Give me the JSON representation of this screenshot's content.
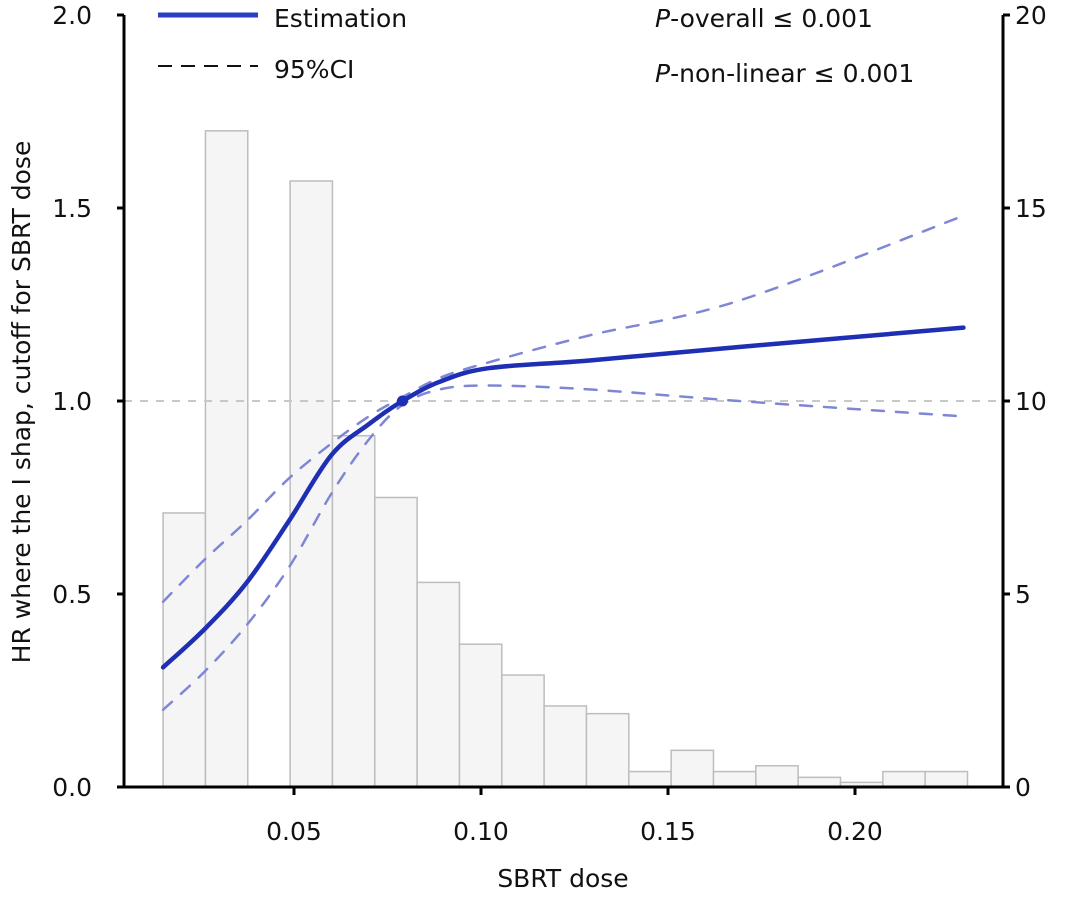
{
  "chart_data": {
    "type": "line",
    "title": "",
    "xlabel": "SBRT dose",
    "ylabel": "HR where the I shap, cutoff for SBRT dose",
    "y2label": "",
    "xlim": [
      0.0,
      0.24
    ],
    "ylim": [
      0.0,
      2.0
    ],
    "y2lim": [
      0,
      20
    ],
    "x_ticks": [
      0.05,
      0.1,
      0.15,
      0.2
    ],
    "x_tick_labels": [
      "0.05",
      "0.10",
      "0.15",
      "0.20"
    ],
    "y_ticks": [
      0.0,
      0.5,
      1.0,
      1.5,
      2.0
    ],
    "y_tick_labels": [
      "0.0",
      "0.5",
      "1.0",
      "1.5",
      "2.0"
    ],
    "y2_ticks": [
      0,
      5,
      10,
      15,
      20
    ],
    "y2_tick_labels": [
      "0",
      "5",
      "10",
      "15",
      "20"
    ],
    "reference_line": {
      "y": 1.0,
      "style": "dashed",
      "color": "#c8c8c8"
    },
    "legend": {
      "position": "top-left",
      "entries": [
        {
          "label": "Estimation",
          "style": "solid",
          "color": "#2233bb"
        },
        {
          "label": "95%CI",
          "style": "dashed",
          "color": "#111111"
        }
      ]
    },
    "annotations": [
      {
        "prefix": "P",
        "text": "-overall ≤ 0.001",
        "position": "top-right"
      },
      {
        "prefix": "P",
        "text": "-non-linear ≤ 0.001",
        "position": "top-right"
      }
    ],
    "knot": {
      "x": 0.079,
      "y": 1.0
    },
    "histogram": {
      "axis": "right",
      "bin_start": 0.015,
      "bin_width": 0.01132,
      "counts": [
        7.1,
        17.0,
        0,
        15.7,
        9.1,
        7.5,
        5.3,
        3.7,
        2.9,
        2.1,
        1.9,
        0.4,
        0.95,
        0.4,
        0.55,
        0.25,
        0.12,
        0.4,
        0.4
      ],
      "fill": "#f5f5f5",
      "stroke": "#bdbdbd"
    },
    "series": [
      {
        "name": "Estimation",
        "style": "solid",
        "color": "#1f2fb3",
        "x": [
          0.015,
          0.0262,
          0.0374,
          0.0487,
          0.06,
          0.07,
          0.079,
          0.089,
          0.102,
          0.129,
          0.169,
          0.229
        ],
        "y": [
          0.31,
          0.41,
          0.53,
          0.69,
          0.86,
          0.94,
          1.0,
          1.05,
          1.085,
          1.105,
          1.14,
          1.19
        ]
      },
      {
        "name": "95%CI upper",
        "style": "dashed",
        "color": "#7f86d6",
        "x": [
          0.015,
          0.0262,
          0.0374,
          0.0487,
          0.06,
          0.07,
          0.079,
          0.089,
          0.102,
          0.129,
          0.169,
          0.229
        ],
        "y": [
          0.48,
          0.59,
          0.69,
          0.8,
          0.89,
          0.96,
          1.01,
          1.06,
          1.1,
          1.17,
          1.26,
          1.48
        ]
      },
      {
        "name": "95%CI lower",
        "style": "dashed",
        "color": "#7f86d6",
        "x": [
          0.015,
          0.0262,
          0.0374,
          0.0487,
          0.06,
          0.07,
          0.079,
          0.089,
          0.102,
          0.129,
          0.169,
          0.229
        ],
        "y": [
          0.2,
          0.3,
          0.42,
          0.57,
          0.76,
          0.9,
          0.99,
          1.03,
          1.04,
          1.03,
          1.0,
          0.96
        ]
      }
    ]
  }
}
